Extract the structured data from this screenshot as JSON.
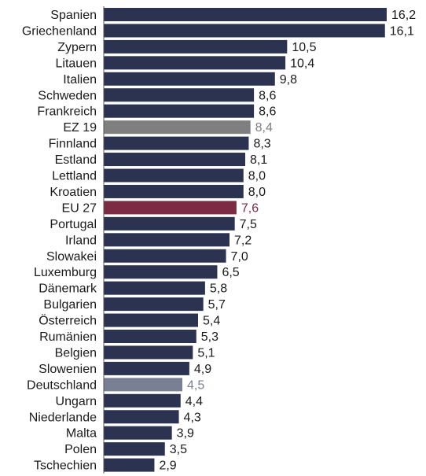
{
  "chart_data": {
    "type": "bar",
    "orientation": "horizontal",
    "categories": [
      "Spanien",
      "Griechenland",
      "Zypern",
      "Litauen",
      "Italien",
      "Schweden",
      "Frankreich",
      "EZ 19",
      "Finnland",
      "Estland",
      "Lettland",
      "Kroatien",
      "EU 27",
      "Portugal",
      "Irland",
      "Slowakei",
      "Luxemburg",
      "Dänemark",
      "Bulgarien",
      "Österreich",
      "Rumänien",
      "Belgien",
      "Slowenien",
      "Deutschland",
      "Ungarn",
      "Niederlande",
      "Malta",
      "Polen",
      "Tschechien"
    ],
    "values": [
      16.2,
      16.1,
      10.5,
      10.4,
      9.8,
      8.6,
      8.6,
      8.4,
      8.3,
      8.1,
      8.0,
      8.0,
      7.6,
      7.5,
      7.2,
      7.0,
      6.5,
      5.8,
      5.7,
      5.4,
      5.3,
      5.1,
      4.9,
      4.5,
      4.4,
      4.3,
      3.9,
      3.5,
      2.9
    ],
    "value_labels": [
      "16,2",
      "16,1",
      "10,5",
      "10,4",
      "9,8",
      "8,6",
      "8,6",
      "8,4",
      "8,3",
      "8,1",
      "8,0",
      "8,0",
      "7,6",
      "7,5",
      "7,2",
      "7,0",
      "6,5",
      "5,8",
      "5,7",
      "5,4",
      "5,3",
      "5,1",
      "4,9",
      "4,5",
      "4,4",
      "4,3",
      "3,9",
      "3,5",
      "2,9"
    ],
    "xlim": [
      0,
      16.2
    ],
    "grid": false,
    "legend": "none",
    "colors": {
      "default_bar": "#2b3350",
      "default_label": "#1a1a1a",
      "category_label": "#1a1a1a",
      "axis": "#555555",
      "highlights": {
        "EZ 19": {
          "bar": "#7f7f7f",
          "label": "#7f7f7f"
        },
        "EU 27": {
          "bar": "#7d2a45",
          "label": "#7d2a45"
        },
        "Deutschland": {
          "bar": "#7a8093",
          "label": "#7a8093"
        }
      }
    }
  }
}
